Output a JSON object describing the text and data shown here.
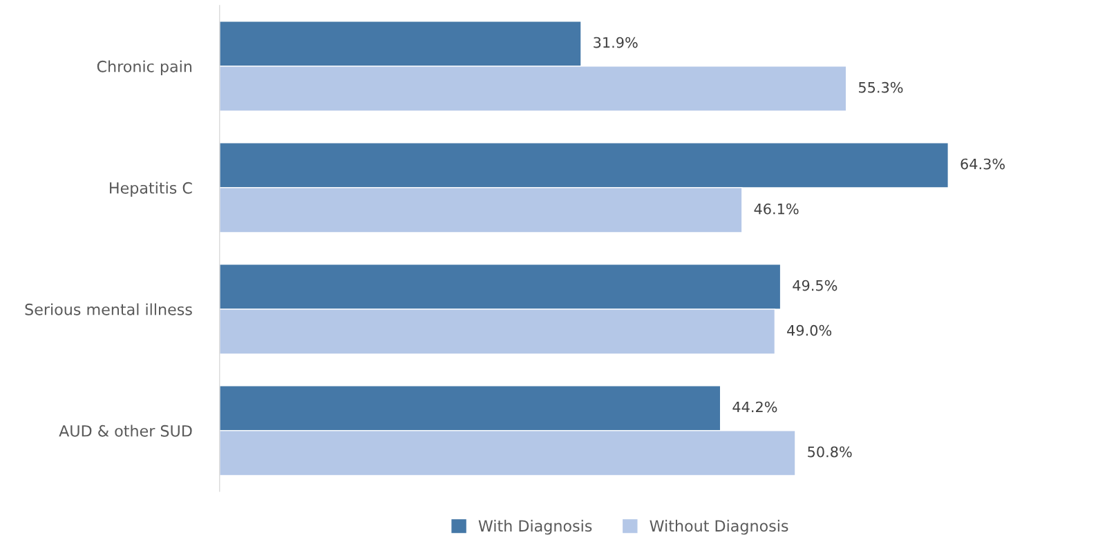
{
  "chart_data": {
    "type": "bar",
    "orientation": "horizontal",
    "categories": [
      "Chronic pain",
      "Hepatitis C",
      "Serious mental illness",
      "AUD & other SUD"
    ],
    "series": [
      {
        "name": "With Diagnosis",
        "color": "#4578a7",
        "values": [
          31.9,
          64.3,
          49.5,
          44.2
        ],
        "value_labels": [
          "31.9%",
          "64.3%",
          "49.5%",
          "44.2%"
        ]
      },
      {
        "name": "Without Diagnosis",
        "color": "#b4c7e7",
        "values": [
          55.3,
          46.1,
          49.0,
          50.8
        ],
        "value_labels": [
          "55.3%",
          "46.1%",
          "49.0%",
          "50.8%"
        ]
      }
    ],
    "legend": "bottom",
    "grid": false,
    "tick_labels": "y"
  }
}
